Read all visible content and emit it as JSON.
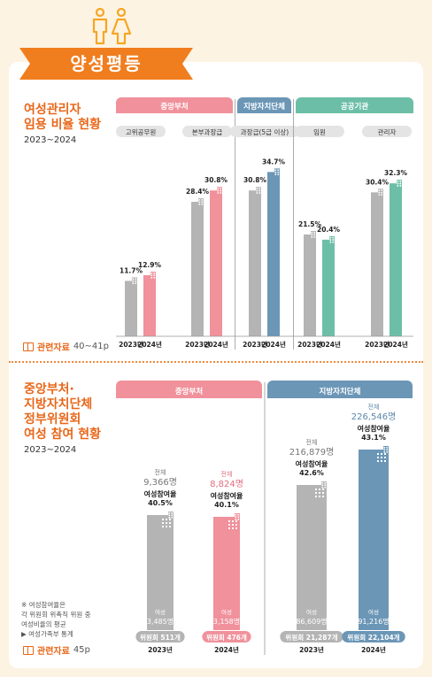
{
  "title": "양성평등",
  "colors": {
    "accent": "#e8671a",
    "gray": "#b4b4b4",
    "pink": "#f0919b",
    "blue": "#6b96b6",
    "green": "#6cbfa6"
  },
  "section1": {
    "title": "여성관리자\n임용 비율 현황",
    "years": "2023~2024",
    "ref_label": "관련자료",
    "ref_pages": "40~41p"
  },
  "section2": {
    "title": "중앙부처·\n지방자치단체\n정부위원회\n여성 참여 현황",
    "years": "2023~2024",
    "note_lines": [
      "※ 여성참여율은",
      "   각 위원회 위촉직 위원 중",
      "   여성비율의 평균",
      "   ▶ 여성가족부 통계"
    ],
    "ref_label": "관련자료",
    "ref_pages": "45p"
  },
  "chart_data": [
    {
      "type": "bar",
      "title": "여성관리자 임용 비율 현황",
      "groups": [
        {
          "header": "중앙부처",
          "subgroups": [
            {
              "label": "고위공무원",
              "years": [
                "2023년",
                "2024년"
              ],
              "values": [
                11.7,
                12.9
              ],
              "labels": [
                "11.7%",
                "12.9%"
              ]
            },
            {
              "label": "본부과장급",
              "years": [
                "2023년",
                "2024년"
              ],
              "values": [
                28.4,
                30.8
              ],
              "labels": [
                "28.4%",
                "30.8%"
              ]
            }
          ]
        },
        {
          "header": "지방자치단체",
          "subgroups": [
            {
              "label": "과장급(5급 이상)",
              "years": [
                "2023년",
                "2024년"
              ],
              "values": [
                30.8,
                34.7
              ],
              "labels": [
                "30.8%",
                "34.7%"
              ]
            }
          ]
        },
        {
          "header": "공공기관",
          "subgroups": [
            {
              "label": "임원",
              "years": [
                "2023년",
                "2024년"
              ],
              "values": [
                21.5,
                20.4
              ],
              "labels": [
                "21.5%",
                "20.4%"
              ]
            },
            {
              "label": "관리자",
              "years": [
                "2023년",
                "2024년"
              ],
              "values": [
                30.4,
                32.3
              ],
              "labels": [
                "30.4%",
                "32.3%"
              ]
            }
          ]
        }
      ]
    },
    {
      "type": "bar",
      "title": "중앙부처·지방자치단체 정부위원회 여성 참여 현황",
      "groups": [
        {
          "header": "중앙부처",
          "bars": [
            {
              "year": "2023년",
              "total_label": "전체",
              "total": "9,366명",
              "rate_label": "여성참여율",
              "rate": "40.5%",
              "female_label": "여성",
              "female": "3,485명",
              "committees": "위원회 511개",
              "total_value": 9366,
              "female_value": 3485,
              "rate_value": 40.5
            },
            {
              "year": "2024년",
              "total_label": "전체",
              "total": "8,824명",
              "rate_label": "여성참여율",
              "rate": "40.1%",
              "female_label": "여성",
              "female": "3,158명",
              "committees": "위원회 476개",
              "total_value": 8824,
              "female_value": 3158,
              "rate_value": 40.1
            }
          ]
        },
        {
          "header": "지방자치단체",
          "bars": [
            {
              "year": "2023년",
              "total_label": "전체",
              "total": "216,879명",
              "rate_label": "여성참여율",
              "rate": "42.6%",
              "female_label": "여성",
              "female": "86,609명",
              "committees": "위원회 21,287개",
              "total_value": 216879,
              "female_value": 86609,
              "rate_value": 42.6
            },
            {
              "year": "2024년",
              "total_label": "전체",
              "total": "226,546명",
              "rate_label": "여성참여율",
              "rate": "43.1%",
              "female_label": "여성",
              "female": "91,216명",
              "committees": "위원회 22,104개",
              "total_value": 226546,
              "female_value": 91216,
              "rate_value": 43.1
            }
          ]
        }
      ]
    }
  ]
}
